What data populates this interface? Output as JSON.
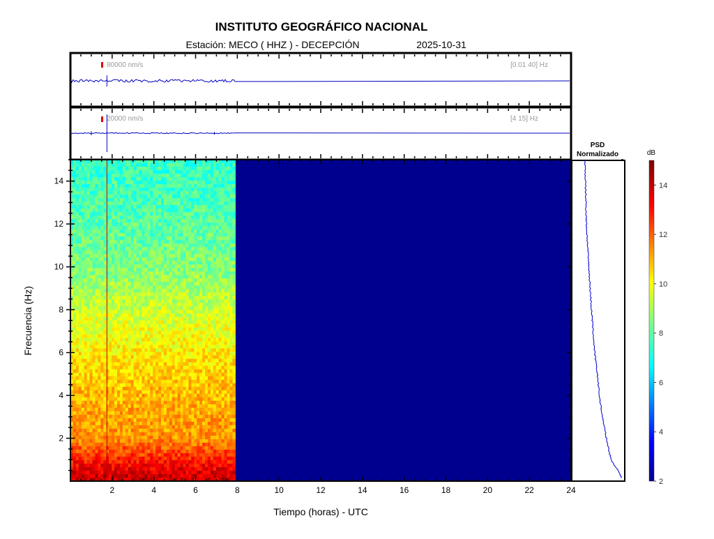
{
  "title": "INSTITUTO GEOGRÁFICO NACIONAL",
  "subtitle": {
    "station": "Estación:  MECO ( HHZ ) - DECEPCIÓN",
    "date": "2025-10-31"
  },
  "traces": [
    {
      "scale_label": "80000 nm/s",
      "band_label": "[0.01 40] Hz"
    },
    {
      "scale_label": "20000 nm/s",
      "band_label": "[4 15] Hz"
    }
  ],
  "psd": {
    "title_line1": "PSD",
    "title_line2": "Normalizado"
  },
  "colorbar": {
    "label": "dB",
    "range": [
      2,
      15
    ],
    "ticks": [
      "2",
      "4",
      "6",
      "8",
      "10",
      "12",
      "14"
    ]
  },
  "colors": {
    "trace": "#0000c0",
    "no_data": "#00008f",
    "event_line": "#c00000"
  },
  "chart_data": {
    "type": "heatmap",
    "xlabel": "Tiempo (horas) - UTC",
    "ylabel": "Frecuencia  (Hz)",
    "xlim": [
      0,
      24
    ],
    "ylim": [
      0,
      15
    ],
    "xticks": [
      "2",
      "4",
      "6",
      "8",
      "10",
      "12",
      "14",
      "16",
      "18",
      "20",
      "22",
      "24"
    ],
    "yticks": [
      "2",
      "4",
      "6",
      "8",
      "10",
      "12",
      "14"
    ],
    "data_end_hour": 7.9,
    "event_hour": 1.75,
    "level_by_frequency_db": [
      [
        0.2,
        14
      ],
      [
        1,
        13
      ],
      [
        2,
        11.5
      ],
      [
        4,
        11
      ],
      [
        6,
        10.3
      ],
      [
        8,
        9.5
      ],
      [
        10,
        8.5
      ],
      [
        12,
        8
      ],
      [
        15,
        7.5
      ]
    ],
    "no_data_level_db": 2,
    "psd_normalized": [
      [
        0.1,
        1.0
      ],
      [
        0.5,
        0.9
      ],
      [
        1,
        0.72
      ],
      [
        2,
        0.6
      ],
      [
        3,
        0.5
      ],
      [
        4,
        0.42
      ],
      [
        5,
        0.37
      ],
      [
        6,
        0.3
      ],
      [
        8,
        0.22
      ],
      [
        10,
        0.15
      ],
      [
        12,
        0.09
      ],
      [
        15,
        0.05
      ]
    ]
  }
}
